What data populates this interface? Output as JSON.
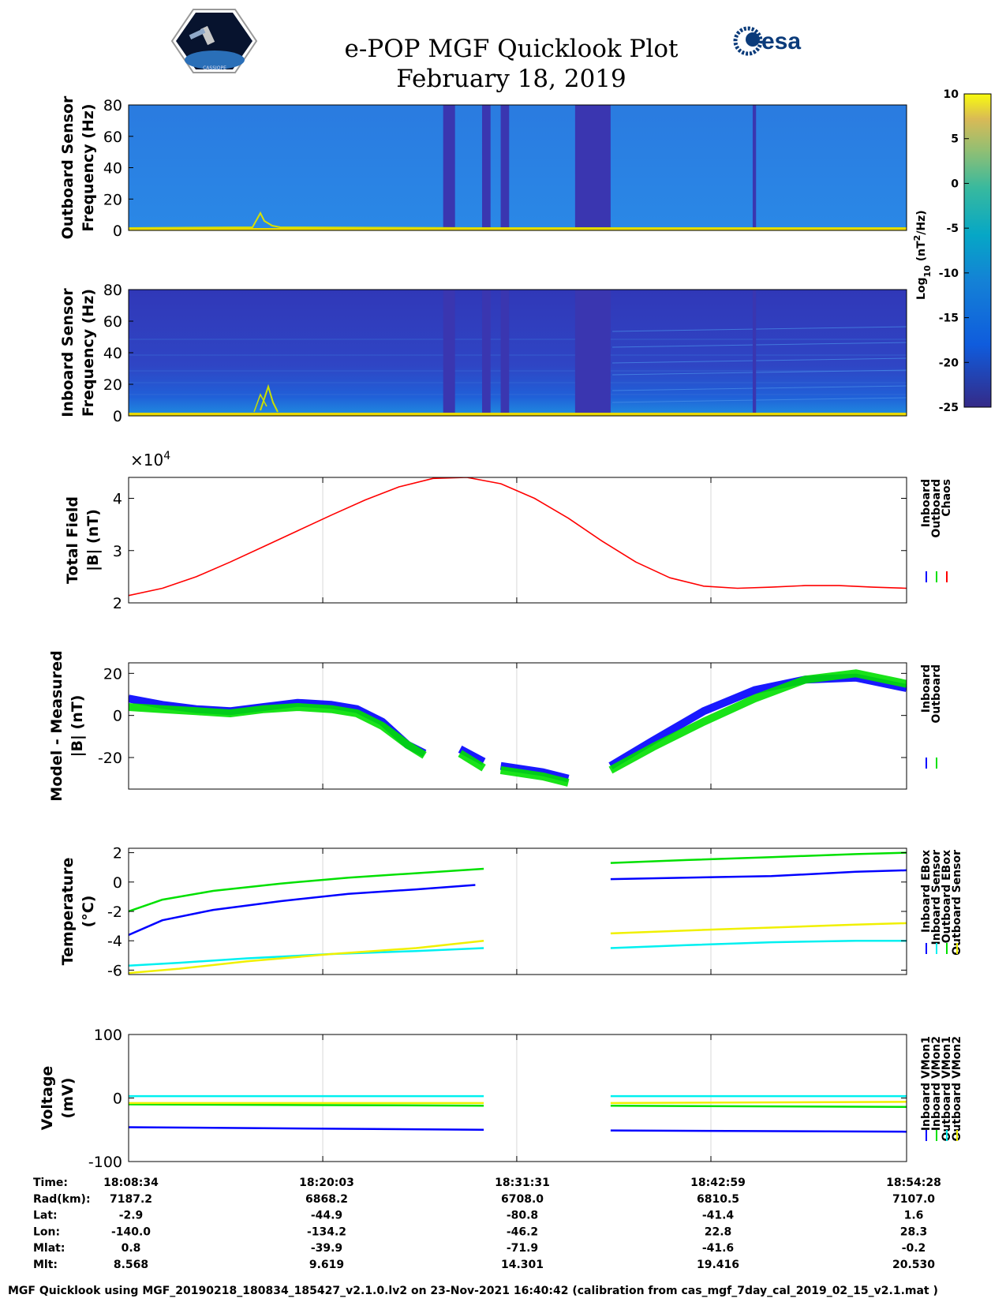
{
  "header": {
    "title": "e-POP MGF Quicklook Plot",
    "date": "February 18, 2019",
    "logo_left": "CASSIOPE",
    "logo_right": "esa"
  },
  "colors": {
    "inboard": "#0000ff",
    "outboard": "#00e000",
    "chaos": "#ff0000",
    "cyan": "#00f0f0",
    "yellow": "#f0f000",
    "spec_high": "#1e7fe0",
    "spec_low": "#3040c8",
    "spec_gap": "#3a36b0"
  },
  "chart_data": [
    {
      "type": "heatmap",
      "id": "outboard_spectrogram",
      "ylabel_lines": [
        "Outboard Sensor",
        "Frequency (Hz)"
      ],
      "yticks": [
        "0",
        "20",
        "40",
        "60",
        "80"
      ],
      "ylim": [
        0,
        80
      ],
      "x_range_minutes": [
        0,
        46
      ]
    },
    {
      "type": "heatmap",
      "id": "inboard_spectrogram",
      "ylabel_lines": [
        "Inboard Sensor",
        "Frequency (Hz)"
      ],
      "yticks": [
        "0",
        "20",
        "40",
        "60",
        "80"
      ],
      "ylim": [
        0,
        80
      ],
      "x_range_minutes": [
        0,
        46
      ]
    },
    {
      "type": "line",
      "id": "total_field",
      "ylabel_lines": [
        "Total Field",
        "|B| (nT)"
      ],
      "yticks": [
        "2",
        "3",
        "4"
      ],
      "exponent_label": "×10",
      "exponent_power": "4",
      "ylim": [
        2.0,
        4.4
      ],
      "units_scale": 10000,
      "x_minutes": [
        0,
        2,
        4,
        6,
        8,
        10,
        12,
        14,
        16,
        18,
        20,
        22,
        24,
        26,
        28,
        30,
        32,
        34,
        36,
        38,
        40,
        42,
        44,
        46
      ],
      "series": [
        {
          "name": "Chaos",
          "values": [
            2.14,
            2.28,
            2.5,
            2.78,
            3.08,
            3.38,
            3.68,
            3.97,
            4.22,
            4.38,
            4.4,
            4.28,
            4.0,
            3.62,
            3.18,
            2.78,
            2.48,
            2.32,
            2.28,
            2.3,
            2.33,
            2.33,
            2.3,
            2.28
          ]
        }
      ],
      "legend": [
        "Inboard",
        "Outboard",
        "Chaos"
      ]
    },
    {
      "type": "line",
      "id": "model_minus_measured",
      "ylabel_lines": [
        "Model - Measured",
        "|B| (nT)"
      ],
      "yticks": [
        "-20",
        "0",
        "20"
      ],
      "ylim": [
        -35,
        25
      ],
      "legend": [
        "Inboard",
        "Outboard"
      ],
      "series": [
        {
          "name": "Inboard",
          "segments": [
            {
              "x": [
                0,
                2,
                4,
                6,
                8,
                10,
                12,
                13.5,
                15,
                16.5,
                17.5
              ],
              "y": [
                8,
                5,
                3,
                2,
                4,
                6,
                5,
                3,
                -3,
                -14,
                -18
              ]
            },
            {
              "x": [
                19.6,
                21
              ],
              "y": [
                -16,
                -22
              ]
            },
            {
              "x": [
                22,
                24.5,
                26
              ],
              "y": [
                -24,
                -27,
                -30
              ]
            },
            {
              "x": [
                28.5,
                31,
                34,
                37,
                40,
                43,
                46
              ],
              "y": [
                -24,
                -12,
                2,
                12,
                17,
                18,
                13
              ]
            }
          ]
        },
        {
          "name": "Outboard",
          "segments": [
            {
              "x": [
                0,
                2,
                4,
                6,
                8,
                10,
                12,
                13.5,
                15,
                16.5,
                17.5
              ],
              "y": [
                4,
                3,
                2,
                1,
                3,
                4,
                3,
                1,
                -5,
                -14,
                -19
              ]
            },
            {
              "x": [
                19.6,
                21
              ],
              "y": [
                -18,
                -25
              ]
            },
            {
              "x": [
                22,
                24.5,
                26
              ],
              "y": [
                -26,
                -29,
                -32
              ]
            },
            {
              "x": [
                28.5,
                31,
                34,
                37,
                40,
                43,
                46
              ],
              "y": [
                -26,
                -15,
                -3,
                8,
                17,
                20,
                15
              ]
            }
          ]
        }
      ]
    },
    {
      "type": "line",
      "id": "temperature",
      "ylabel_lines": [
        "Temperature",
        "(°C)"
      ],
      "yticks": [
        "-6",
        "-4",
        "-2",
        "0",
        "2"
      ],
      "ylim": [
        -6.3,
        2.3
      ],
      "legend": [
        "Inboard EBox",
        "Inboard Sensor",
        "Outboard EBox",
        "Outboard Sensor"
      ],
      "series": [
        {
          "name": "Inboard EBox",
          "segments": [
            {
              "x": [
                0,
                2,
                5,
                9,
                13,
                17,
                20.5
              ],
              "y": [
                -3.6,
                -2.6,
                -1.9,
                -1.3,
                -0.8,
                -0.5,
                -0.2
              ]
            },
            {
              "x": [
                28.5,
                33,
                38,
                43,
                46
              ],
              "y": [
                0.2,
                0.3,
                0.4,
                0.7,
                0.8
              ]
            }
          ]
        },
        {
          "name": "Inboard Sensor",
          "segments": [
            {
              "x": [
                0,
                3,
                7,
                12,
                17,
                21
              ],
              "y": [
                -5.7,
                -5.5,
                -5.2,
                -4.9,
                -4.7,
                -4.5
              ]
            },
            {
              "x": [
                28.5,
                33,
                38,
                43,
                46
              ],
              "y": [
                -4.5,
                -4.3,
                -4.1,
                -4.0,
                -4.0
              ]
            }
          ]
        },
        {
          "name": "Outboard EBox",
          "segments": [
            {
              "x": [
                0,
                2,
                5,
                9,
                13,
                17,
                21
              ],
              "y": [
                -2.0,
                -1.2,
                -0.6,
                -0.1,
                0.3,
                0.6,
                0.9
              ]
            },
            {
              "x": [
                28.5,
                33,
                38,
                43,
                46
              ],
              "y": [
                1.3,
                1.5,
                1.7,
                1.9,
                2.0
              ]
            }
          ]
        },
        {
          "name": "Outboard Sensor",
          "segments": [
            {
              "x": [
                0,
                3,
                7,
                12,
                17,
                21
              ],
              "y": [
                -6.2,
                -5.9,
                -5.4,
                -4.9,
                -4.5,
                -4.0
              ]
            },
            {
              "x": [
                28.5,
                33,
                38,
                43,
                46
              ],
              "y": [
                -3.5,
                -3.3,
                -3.1,
                -2.9,
                -2.8
              ]
            }
          ]
        }
      ]
    },
    {
      "type": "line",
      "id": "voltage",
      "ylabel_lines": [
        "Voltage",
        "(mV)"
      ],
      "yticks": [
        "-100",
        "0",
        "100"
      ],
      "ylim": [
        -100,
        100
      ],
      "legend": [
        "Inboard VMon1",
        "Inboard VMon2",
        "Outboard VMon1",
        "Outboard VMon2"
      ],
      "series": [
        {
          "name": "Inboard VMon1",
          "segments": [
            {
              "x": [
                0,
                21
              ],
              "y": [
                -46,
                -50
              ]
            },
            {
              "x": [
                28.5,
                46
              ],
              "y": [
                -51,
                -53
              ]
            }
          ]
        },
        {
          "name": "Inboard VMon2",
          "segments": [
            {
              "x": [
                0,
                21
              ],
              "y": [
                -10,
                -12
              ]
            },
            {
              "x": [
                28.5,
                46
              ],
              "y": [
                -12,
                -14
              ]
            }
          ]
        },
        {
          "name": "Outboard VMon1",
          "segments": [
            {
              "x": [
                0,
                21
              ],
              "y": [
                3,
                3
              ]
            },
            {
              "x": [
                28.5,
                46
              ],
              "y": [
                3,
                3
              ]
            }
          ]
        },
        {
          "name": "Outboard VMon2",
          "segments": [
            {
              "x": [
                0,
                21
              ],
              "y": [
                -8,
                -8
              ]
            },
            {
              "x": [
                28.5,
                46
              ],
              "y": [
                -8,
                -6
              ]
            }
          ]
        }
      ]
    }
  ],
  "colorbar": {
    "ticks": [
      "10",
      "5",
      "0",
      "-5",
      "-10",
      "-15",
      "-20",
      "-25"
    ],
    "range": [
      -25,
      10
    ],
    "label_prefix": "Log",
    "label_sub": "10",
    "label_unit_a": " (nT",
    "label_sup": "2",
    "label_unit_b": "/Hz)"
  },
  "orbit_table": {
    "row_labels": [
      "Time:",
      "Rad(km):",
      "Lat:",
      "Lon:",
      "Mlat:",
      "Mlt:"
    ],
    "columns": [
      [
        "18:08:34",
        "7187.2",
        "-2.9",
        "-140.0",
        "0.8",
        "8.568"
      ],
      [
        "18:20:03",
        "6868.2",
        "-44.9",
        "-134.2",
        "-39.9",
        "9.619"
      ],
      [
        "18:31:31",
        "6708.0",
        "-80.8",
        "-46.2",
        "-71.9",
        "14.301"
      ],
      [
        "18:42:59",
        "6810.5",
        "-41.4",
        "22.8",
        "-41.6",
        "19.416"
      ],
      [
        "18:54:28",
        "7107.0",
        "1.6",
        "28.3",
        "-0.2",
        "20.530"
      ]
    ]
  },
  "footer": "MGF Quicklook using MGF_20190218_180834_185427_v2.1.0.lv2 on 23-Nov-2021 16:40:42 (calibration from cas_mgf_7day_cal_2019_02_15_v2.1.mat )"
}
